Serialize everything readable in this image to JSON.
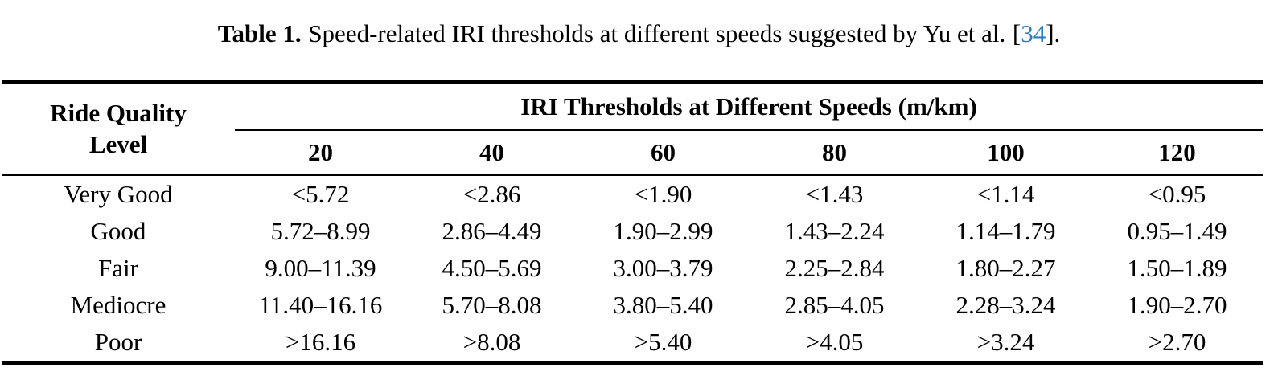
{
  "caption": {
    "label": "Table 1.",
    "body": "Speed-related IRI thresholds at different speeds suggested by Yu et al.",
    "bracket_open": "[",
    "citation_number": "34",
    "bracket_close": "]."
  },
  "table": {
    "row_header": "Ride Quality Level",
    "group_header": "IRI Thresholds at Different Speeds (m/km)",
    "speed_columns": [
      "20",
      "40",
      "60",
      "80",
      "100",
      "120"
    ],
    "rows": [
      {
        "level": "Very Good",
        "values": [
          "<5.72",
          "<2.86",
          "<1.90",
          "<1.43",
          "<1.14",
          "<0.95"
        ]
      },
      {
        "level": "Good",
        "values": [
          "5.72–8.99",
          "2.86–4.49",
          "1.90–2.99",
          "1.43–2.24",
          "1.14–1.79",
          "0.95–1.49"
        ]
      },
      {
        "level": "Fair",
        "values": [
          "9.00–11.39",
          "4.50–5.69",
          "3.00–3.79",
          "2.25–2.84",
          "1.80–2.27",
          "1.50–1.89"
        ]
      },
      {
        "level": "Mediocre",
        "values": [
          "11.40–16.16",
          "5.70–8.08",
          "3.80–5.40",
          "2.85–4.05",
          "2.28–3.24",
          "1.90–2.70"
        ]
      },
      {
        "level": "Poor",
        "values": [
          ">16.16",
          ">8.08",
          ">5.40",
          ">4.05",
          ">3.24",
          ">2.70"
        ]
      }
    ]
  },
  "colors": {
    "text": "#000000",
    "background": "#ffffff",
    "rule": "#000000",
    "citation": "#2f7cb8"
  }
}
